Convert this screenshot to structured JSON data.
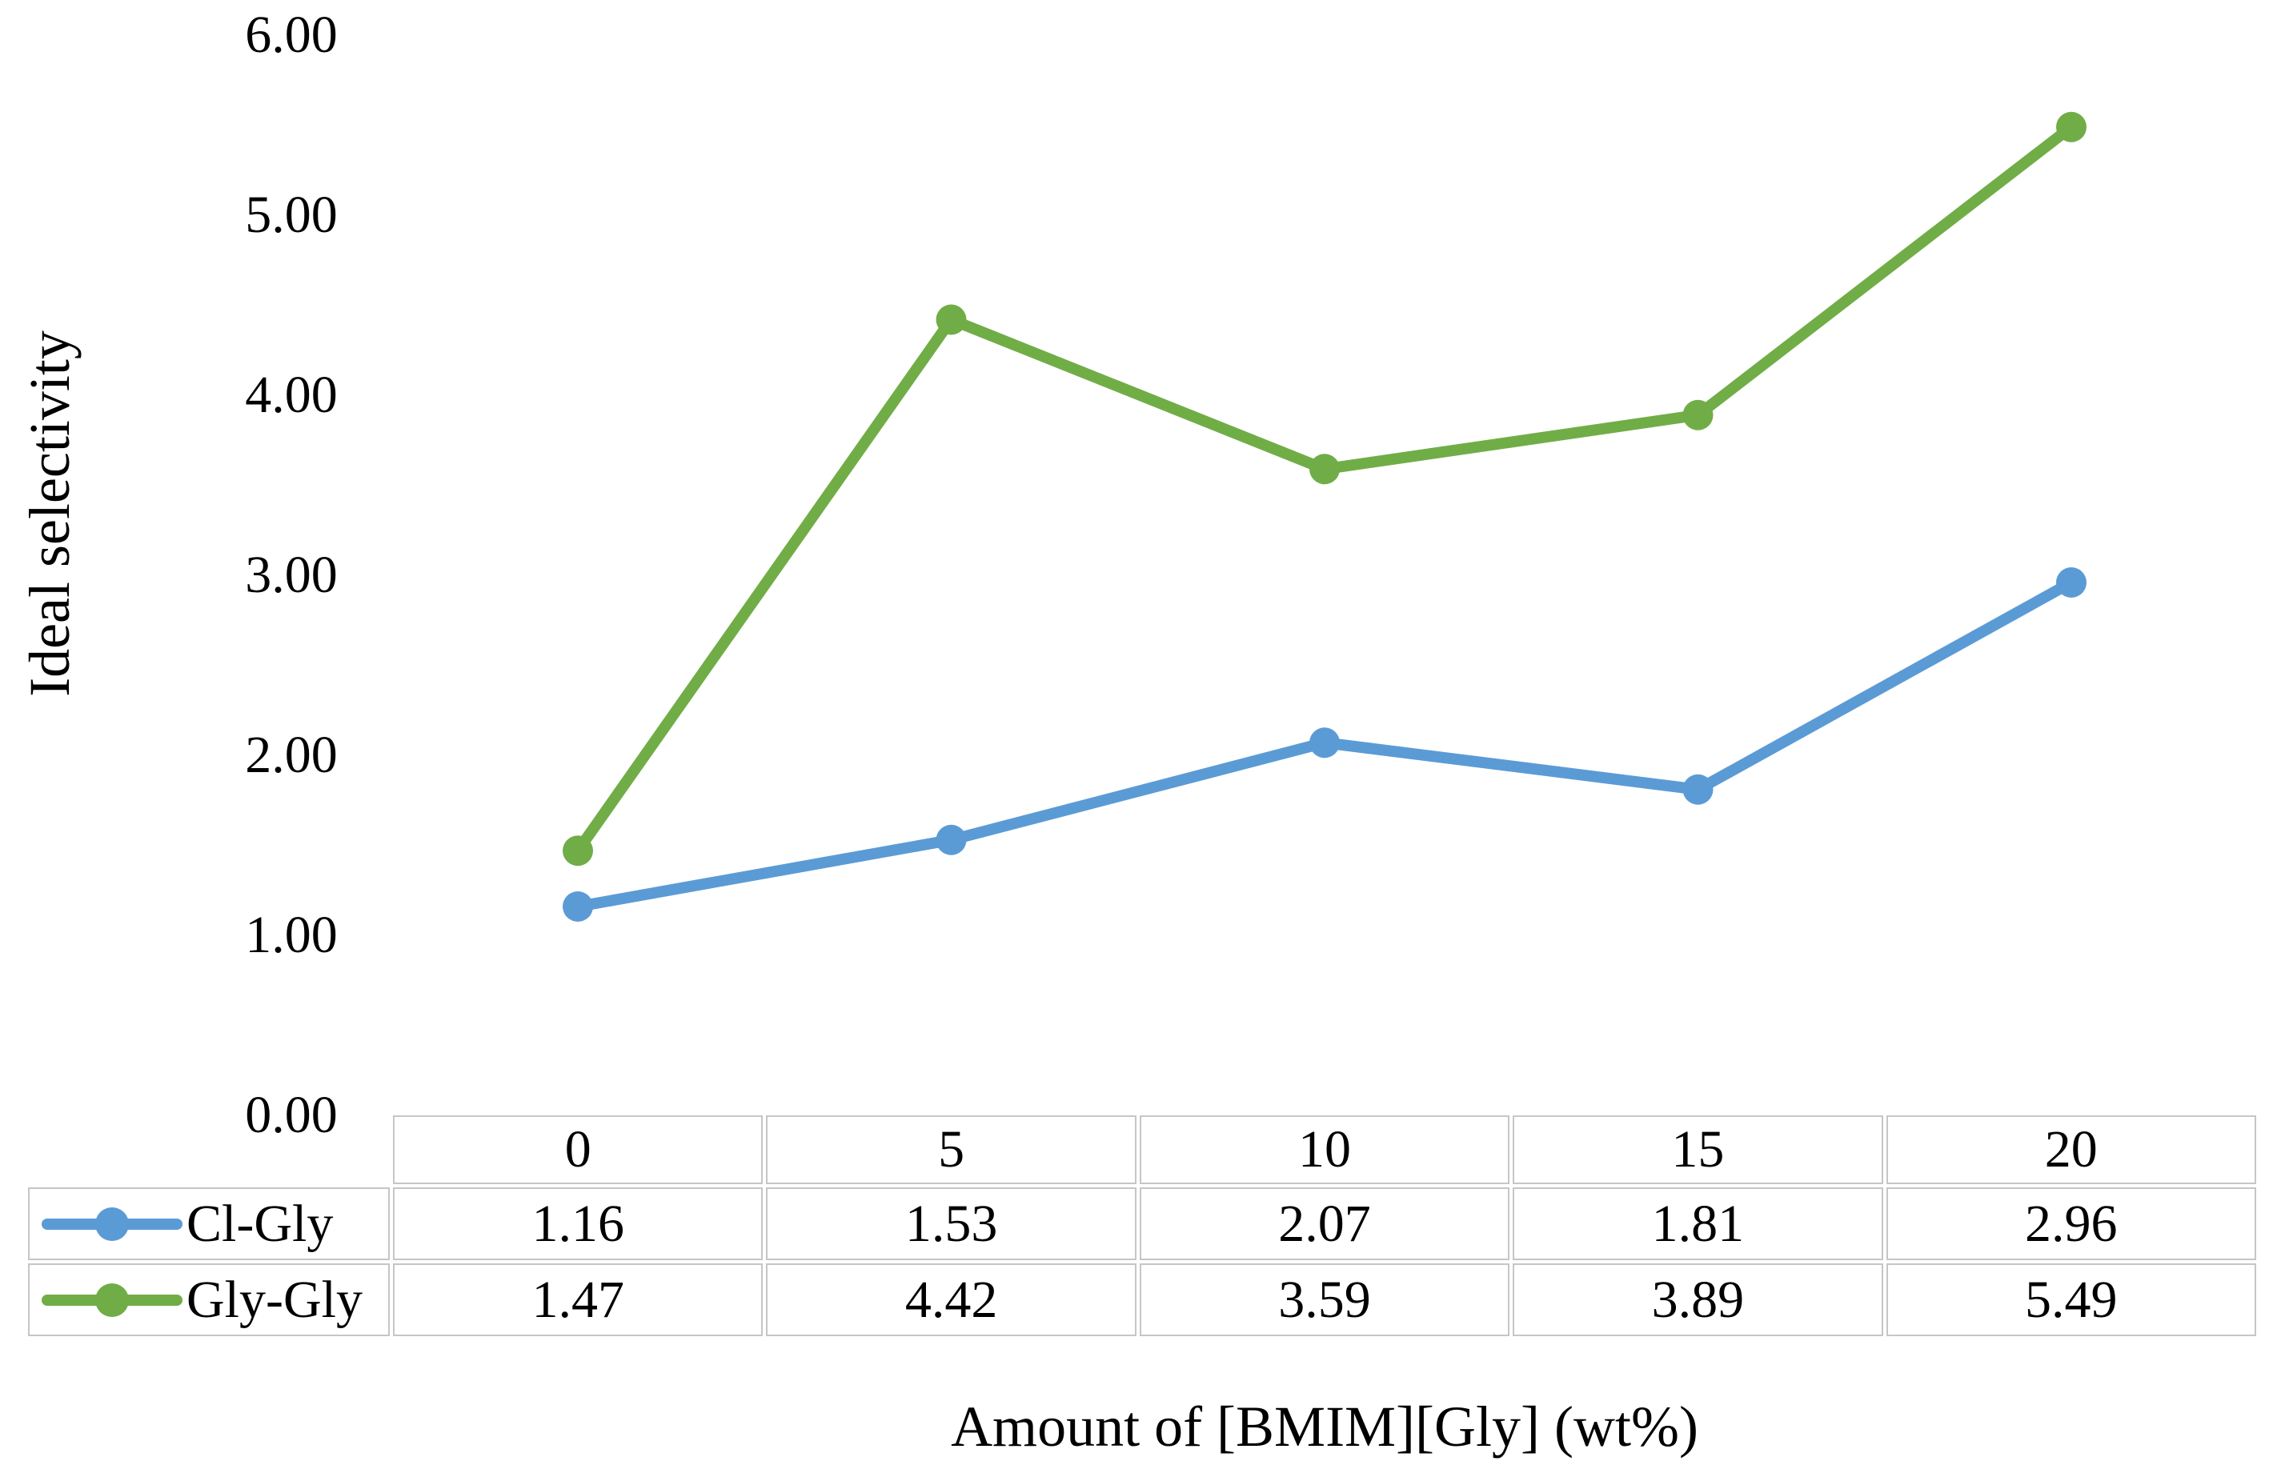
{
  "chart_data": {
    "type": "line",
    "title": "",
    "xlabel": "Amount of [BMIM][Gly] (wt%)",
    "ylabel": "Ideal selectivity",
    "categories": [
      "0",
      "5",
      "10",
      "15",
      "20"
    ],
    "ylim": [
      0,
      6
    ],
    "ytick_interval": 1.0,
    "yticks": [
      "6.00",
      "5.00",
      "4.00",
      "3.00",
      "2.00",
      "1.00",
      "0.00"
    ],
    "grid": false,
    "axis_lines": false,
    "legend_position": "data-table-left-column",
    "marker": "circle",
    "table_border_color": "#c6c6c6",
    "series": [
      {
        "name": "Cl-Gly",
        "color": "#5B9BD5",
        "values": [
          1.16,
          1.53,
          2.07,
          1.81,
          2.96
        ]
      },
      {
        "name": "Gly-Gly",
        "color": "#70AD47",
        "values": [
          1.47,
          4.42,
          3.59,
          3.89,
          5.49
        ]
      }
    ]
  }
}
